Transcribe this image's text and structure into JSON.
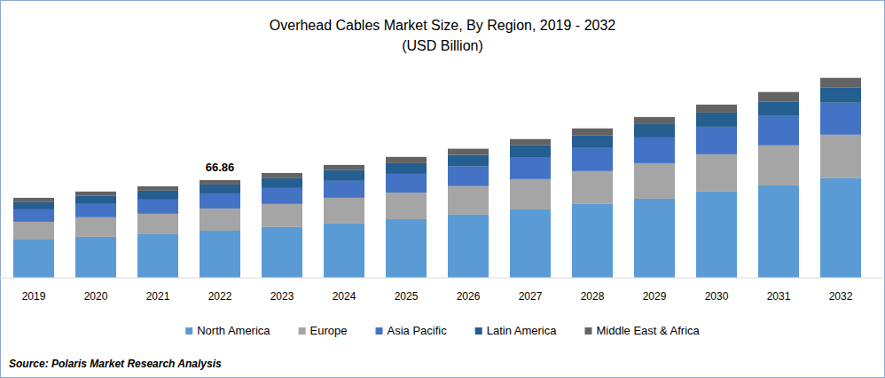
{
  "chart_data": {
    "type": "bar",
    "stacked": true,
    "title": "Overhead Cables Market Size, By Region, 2019 - 2032",
    "subtitle": "(USD Billion)",
    "source": "Source: Polaris Market Research Analysis",
    "categories": [
      "2019",
      "2020",
      "2021",
      "2022",
      "2023",
      "2024",
      "2025",
      "2026",
      "2027",
      "2028",
      "2029",
      "2030",
      "2031",
      "2032"
    ],
    "series": [
      {
        "name": "North America",
        "color": "#5b9bd5",
        "values": [
          26.1,
          28.0,
          29.8,
          32.2,
          34.7,
          37.1,
          40.1,
          43.2,
          46.8,
          50.5,
          54.1,
          59.0,
          63.2,
          68.1
        ]
      },
      {
        "name": "Europe",
        "color": "#a5a5a5",
        "values": [
          12.2,
          13.4,
          14.0,
          15.2,
          15.8,
          17.6,
          18.2,
          19.5,
          20.7,
          22.5,
          24.3,
          25.5,
          27.4,
          29.8
        ]
      },
      {
        "name": "Asia Pacific",
        "color": "#4472c4",
        "values": [
          8.5,
          9.1,
          9.7,
          10.3,
          10.9,
          11.6,
          12.8,
          13.4,
          14.6,
          15.8,
          17.6,
          18.8,
          20.1,
          21.9
        ]
      },
      {
        "name": "Latin America",
        "color": "#255e91",
        "values": [
          4.9,
          5.5,
          6.1,
          6.1,
          6.7,
          7.3,
          7.3,
          7.9,
          8.5,
          8.5,
          9.1,
          9.7,
          9.7,
          10.3
        ]
      },
      {
        "name": "Middle East & Africa",
        "color": "#636363",
        "values": [
          3.0,
          3.0,
          3.0,
          3.06,
          3.6,
          3.6,
          4.3,
          4.3,
          4.3,
          4.9,
          4.9,
          5.5,
          6.7,
          6.7
        ]
      }
    ],
    "annotations": [
      {
        "x": "2022",
        "value": 66.86,
        "label": "66.86"
      }
    ],
    "ylim": [
      0,
      150
    ],
    "tick_labels": "x",
    "grid": false,
    "legend": "bottom"
  }
}
